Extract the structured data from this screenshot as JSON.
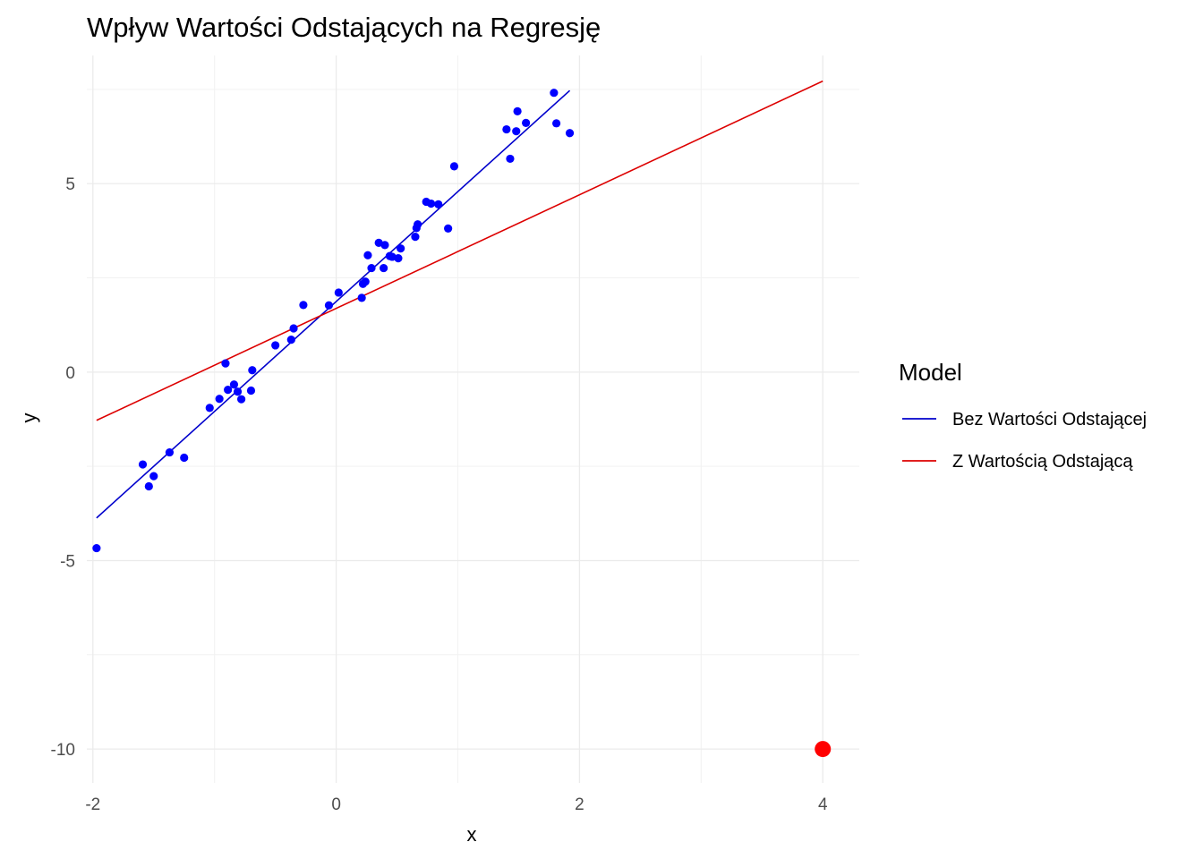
{
  "chart_data": {
    "type": "scatter",
    "title": "Wpływ Wartości Odstających na Regresję",
    "xlabel": "x",
    "ylabel": "y",
    "xlim": [
      -2.05,
      4.3
    ],
    "ylim": [
      -10.9,
      8.4
    ],
    "x_ticks": [
      -2,
      0,
      2,
      4
    ],
    "x_tick_labels": [
      "-2",
      "0",
      "2",
      "4"
    ],
    "y_ticks": [
      -10,
      -5,
      0,
      5
    ],
    "y_tick_labels": [
      "-10",
      "-5",
      "0",
      "5"
    ],
    "x_minor_ticks": [
      -1,
      1,
      3
    ],
    "y_minor_ticks": [
      -7.5,
      -2.5,
      2.5,
      7.5
    ],
    "grid": true,
    "legend_position": "right",
    "legend": {
      "title": "Model",
      "entries": [
        {
          "name": "Bez Wartości Odstającej",
          "color": "#0000cc"
        },
        {
          "name": "Z Wartością Odstającą",
          "color": "#dd0000"
        }
      ]
    },
    "points": {
      "color": "#0000ff",
      "values": [
        [
          -1.97,
          -4.67
        ],
        [
          -1.59,
          -2.45
        ],
        [
          -1.54,
          -3.03
        ],
        [
          -1.5,
          -2.76
        ],
        [
          -1.37,
          -2.13
        ],
        [
          -1.25,
          -2.27
        ],
        [
          -1.04,
          -0.95
        ],
        [
          -0.96,
          -0.71
        ],
        [
          -0.91,
          0.23
        ],
        [
          -0.89,
          -0.47
        ],
        [
          -0.84,
          -0.33
        ],
        [
          -0.81,
          -0.52
        ],
        [
          -0.78,
          -0.72
        ],
        [
          -0.7,
          -0.49
        ],
        [
          -0.69,
          0.05
        ],
        [
          -0.5,
          0.71
        ],
        [
          -0.37,
          0.86
        ],
        [
          -0.35,
          1.16
        ],
        [
          -0.27,
          1.78
        ],
        [
          -0.06,
          1.77
        ],
        [
          0.02,
          2.11
        ],
        [
          0.21,
          1.97
        ],
        [
          0.22,
          2.34
        ],
        [
          0.24,
          2.4
        ],
        [
          0.26,
          3.1
        ],
        [
          0.29,
          2.76
        ],
        [
          0.35,
          3.43
        ],
        [
          0.39,
          2.76
        ],
        [
          0.4,
          3.37
        ],
        [
          0.44,
          3.08
        ],
        [
          0.46,
          3.06
        ],
        [
          0.51,
          3.02
        ],
        [
          0.53,
          3.28
        ],
        [
          0.65,
          3.59
        ],
        [
          0.66,
          3.82
        ],
        [
          0.67,
          3.92
        ],
        [
          0.74,
          4.52
        ],
        [
          0.78,
          4.47
        ],
        [
          0.84,
          4.45
        ],
        [
          0.92,
          3.81
        ],
        [
          0.97,
          5.46
        ],
        [
          1.4,
          6.44
        ],
        [
          1.43,
          5.66
        ],
        [
          1.48,
          6.39
        ],
        [
          1.49,
          6.92
        ],
        [
          1.56,
          6.61
        ],
        [
          1.79,
          7.41
        ],
        [
          1.81,
          6.6
        ],
        [
          1.92,
          6.34
        ]
      ]
    },
    "outlier": {
      "x": 4.0,
      "y": -10.0,
      "color": "#ff0000"
    },
    "series": [
      {
        "name": "Bez Wartości Odstającej",
        "color": "#0000cc",
        "x": [
          -1.97,
          1.92
        ],
        "y": [
          -3.87,
          7.47
        ]
      },
      {
        "name": "Z Wartością Odstającą",
        "color": "#dd0000",
        "x": [
          -1.97,
          4.0
        ],
        "y": [
          -1.28,
          7.72
        ]
      }
    ]
  }
}
